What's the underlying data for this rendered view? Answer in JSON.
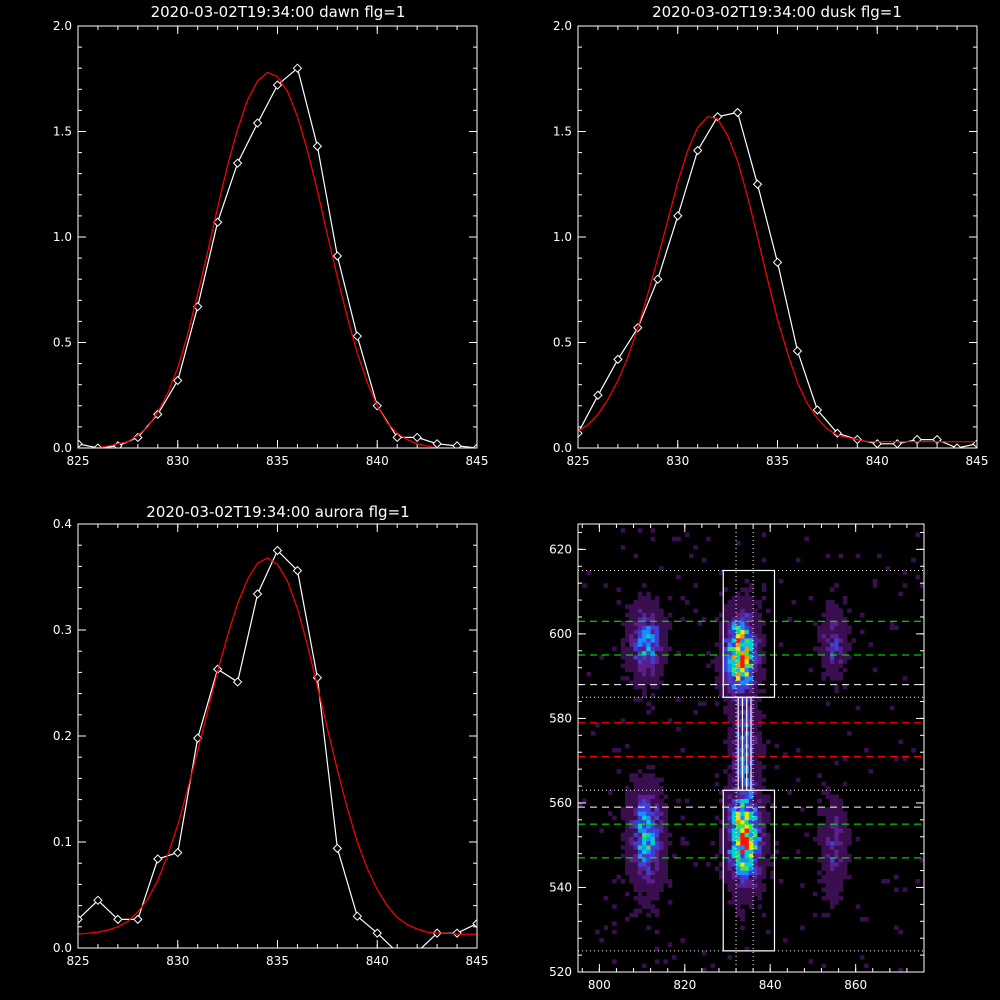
{
  "chart_data": [
    {
      "type": "line",
      "title": "2020-03-02T19:34:00 dawn flg=1",
      "xlim": [
        825,
        845
      ],
      "ylim": [
        0,
        2.0
      ],
      "xticks": [
        "825",
        "830",
        "835",
        "840",
        "845"
      ],
      "yticks": [
        "0.0",
        "0.5",
        "1.0",
        "1.5",
        "2.0"
      ],
      "series": [
        {
          "color": "#ffffff",
          "marker": "diamond",
          "x": [
            825,
            826,
            827,
            828,
            829,
            830,
            831,
            832,
            833,
            834,
            835,
            836,
            837,
            838,
            839,
            840,
            841,
            842,
            843,
            844,
            845
          ],
          "y": [
            0.02,
            0.0,
            0.01,
            0.05,
            0.16,
            0.32,
            0.67,
            1.07,
            1.35,
            1.54,
            1.72,
            1.8,
            1.43,
            0.91,
            0.53,
            0.2,
            0.05,
            0.05,
            0.02,
            0.01,
            0.0
          ]
        },
        {
          "color": "#ff0000",
          "fit": "gaussian",
          "x": [
            825,
            825.5,
            826,
            826.5,
            827,
            827.5,
            828,
            828.5,
            829,
            829.5,
            830,
            830.5,
            831,
            831.5,
            832,
            832.5,
            833,
            833.5,
            834,
            834.5,
            835,
            835.5,
            836,
            836.5,
            837,
            837.5,
            838,
            838.5,
            839,
            839.5,
            840,
            840.5,
            841,
            841.5,
            842,
            842.5,
            843,
            843.5,
            844,
            844.5,
            845
          ],
          "y": [
            0.0,
            0.0,
            0.0,
            0.01,
            0.02,
            0.03,
            0.06,
            0.1,
            0.17,
            0.26,
            0.38,
            0.54,
            0.73,
            0.93,
            1.14,
            1.34,
            1.51,
            1.65,
            1.74,
            1.78,
            1.76,
            1.69,
            1.57,
            1.41,
            1.22,
            1.01,
            0.81,
            0.62,
            0.45,
            0.31,
            0.2,
            0.12,
            0.07,
            0.04,
            0.02,
            0.01,
            0.0,
            0.0,
            0.0,
            0.0,
            0.0
          ]
        }
      ]
    },
    {
      "type": "line",
      "title": "2020-03-02T19:34:00 dusk flg=1",
      "xlim": [
        825,
        845
      ],
      "ylim": [
        0,
        2.0
      ],
      "xticks": [
        "825",
        "830",
        "835",
        "840",
        "845"
      ],
      "yticks": [
        "0.0",
        "0.5",
        "1.0",
        "1.5",
        "2.0"
      ],
      "series": [
        {
          "color": "#ffffff",
          "marker": "diamond",
          "x": [
            825,
            826,
            827,
            828,
            829,
            830,
            831,
            832,
            833,
            834,
            835,
            836,
            837,
            838,
            839,
            840,
            841,
            842,
            843,
            844,
            845
          ],
          "y": [
            0.07,
            0.25,
            0.42,
            0.57,
            0.8,
            1.1,
            1.41,
            1.57,
            1.59,
            1.25,
            0.88,
            0.46,
            0.18,
            0.07,
            0.04,
            0.02,
            0.02,
            0.04,
            0.04,
            0.0,
            0.02
          ]
        },
        {
          "color": "#ff0000",
          "fit": "gaussian",
          "x": [
            825,
            825.5,
            826,
            826.5,
            827,
            827.5,
            828,
            828.5,
            829,
            829.5,
            830,
            830.5,
            831,
            831.5,
            832,
            832.5,
            833,
            833.5,
            834,
            834.5,
            835,
            835.5,
            836,
            836.5,
            837,
            837.5,
            838,
            838.5,
            839,
            839.5,
            840,
            840.5,
            841,
            841.5,
            842,
            842.5,
            843,
            843.5,
            844,
            844.5,
            845
          ],
          "y": [
            0.08,
            0.11,
            0.16,
            0.23,
            0.32,
            0.43,
            0.57,
            0.73,
            0.9,
            1.08,
            1.26,
            1.41,
            1.52,
            1.57,
            1.56,
            1.48,
            1.36,
            1.19,
            1.0,
            0.8,
            0.61,
            0.45,
            0.31,
            0.21,
            0.14,
            0.09,
            0.06,
            0.05,
            0.04,
            0.03,
            0.03,
            0.03,
            0.03,
            0.03,
            0.03,
            0.03,
            0.03,
            0.03,
            0.03,
            0.03,
            0.03
          ]
        }
      ]
    },
    {
      "type": "line",
      "title": "2020-03-02T19:34:00 aurora flg=1",
      "xlim": [
        825,
        845
      ],
      "ylim": [
        0,
        0.4
      ],
      "xticks": [
        "825",
        "830",
        "835",
        "840",
        "845"
      ],
      "yticks": [
        "0.0",
        "0.1",
        "0.2",
        "0.3",
        "0.4"
      ],
      "series": [
        {
          "color": "#ffffff",
          "marker": "diamond",
          "x": [
            825,
            826,
            827,
            828,
            829,
            830,
            831,
            832,
            833,
            834,
            835,
            836,
            837,
            838,
            839,
            840,
            841,
            842,
            843,
            844,
            845
          ],
          "y": [
            0.027,
            0.045,
            0.027,
            0.027,
            0.084,
            0.09,
            0.198,
            0.263,
            0.251,
            0.334,
            0.375,
            0.356,
            0.255,
            0.094,
            0.03,
            0.014,
            -0.004,
            -0.004,
            0.014,
            0.014,
            0.023
          ]
        },
        {
          "color": "#ff0000",
          "fit": "gaussian",
          "x": [
            825,
            825.5,
            826,
            826.5,
            827,
            827.5,
            828,
            828.5,
            829,
            829.5,
            830,
            830.5,
            831,
            831.5,
            832,
            832.5,
            833,
            833.5,
            834,
            834.5,
            835,
            835.5,
            836,
            836.5,
            837,
            837.5,
            838,
            838.5,
            839,
            839.5,
            840,
            840.5,
            841,
            841.5,
            842,
            842.5,
            843,
            843.5,
            844,
            844.5,
            845
          ],
          "y": [
            0.013,
            0.014,
            0.015,
            0.017,
            0.02,
            0.025,
            0.034,
            0.046,
            0.064,
            0.088,
            0.116,
            0.15,
            0.186,
            0.224,
            0.261,
            0.295,
            0.325,
            0.348,
            0.363,
            0.368,
            0.362,
            0.346,
            0.32,
            0.286,
            0.247,
            0.207,
            0.168,
            0.132,
            0.1,
            0.075,
            0.055,
            0.04,
            0.029,
            0.022,
            0.018,
            0.015,
            0.014,
            0.014,
            0.013,
            0.013,
            0.013
          ]
        }
      ]
    },
    {
      "type": "heatmap",
      "xlim": [
        795,
        876
      ],
      "ylim": [
        520,
        626
      ],
      "xticks": [
        "800",
        "820",
        "840",
        "860"
      ],
      "yticks": [
        "520",
        "540",
        "560",
        "580",
        "600",
        "620"
      ],
      "colormap": [
        "#000000",
        "#3a0f4f",
        "#5b1f8c",
        "#3f3fd6",
        "#1a8cff",
        "#00d0d0",
        "#40e060",
        "#e8e800",
        "#ff9000",
        "#ff1010"
      ],
      "emission_regions": [
        {
          "x": 811,
          "y": 598,
          "half_width_x": 4,
          "half_height_y": 9,
          "strength": 0.55
        },
        {
          "x": 811,
          "y": 552,
          "half_width_x": 4,
          "half_height_y": 12,
          "strength": 0.6
        },
        {
          "x": 833,
          "y": 595,
          "half_width_x": 4,
          "half_height_y": 10,
          "strength": 1.0
        },
        {
          "x": 834,
          "y": 552,
          "half_width_x": 4,
          "half_height_y": 12,
          "strength": 1.0
        },
        {
          "x": 834,
          "y": 574,
          "half_width_x": 3,
          "half_height_y": 10,
          "strength": 0.45
        },
        {
          "x": 855,
          "y": 598,
          "half_width_x": 3,
          "half_height_y": 8,
          "strength": 0.35
        },
        {
          "x": 855,
          "y": 550,
          "half_width_x": 3,
          "half_height_y": 12,
          "strength": 0.3
        }
      ],
      "boxes": [
        {
          "x0": 829,
          "x1": 841,
          "y0": 585,
          "y1": 615,
          "color": "#ffffff"
        },
        {
          "x0": 829,
          "x1": 841,
          "y0": 525,
          "y1": 563,
          "color": "#ffffff"
        },
        {
          "x0": 832.5,
          "x1": 833.5,
          "y0": 563,
          "y1": 585,
          "color": "#ffffff"
        },
        {
          "x0": 834.5,
          "x1": 835.5,
          "y0": 563,
          "y1": 585,
          "color": "#ffffff"
        }
      ],
      "hlines": [
        {
          "y": 615,
          "color": "#ffffff",
          "style": "dotted"
        },
        {
          "y": 603,
          "color": "#00ff00",
          "style": "dashed"
        },
        {
          "y": 595,
          "color": "#00ff00",
          "style": "dashed"
        },
        {
          "y": 588,
          "color": "#ffffff",
          "style": "dashed"
        },
        {
          "y": 585,
          "color": "#ffffff",
          "style": "dotted"
        },
        {
          "y": 579,
          "color": "#ff0000",
          "style": "dashed"
        },
        {
          "y": 571,
          "color": "#ff0000",
          "style": "dashed"
        },
        {
          "y": 563,
          "color": "#ffffff",
          "style": "dotted"
        },
        {
          "y": 559,
          "color": "#ffffff",
          "style": "dashed"
        },
        {
          "y": 555,
          "color": "#00ff00",
          "style": "dashed"
        },
        {
          "y": 547,
          "color": "#00ff00",
          "style": "dashed"
        },
        {
          "y": 525,
          "color": "#ffffff",
          "style": "dotted"
        }
      ],
      "vlines": [
        {
          "x": 832,
          "color": "#ffffff",
          "style": "dotted"
        },
        {
          "x": 836,
          "color": "#ffffff",
          "style": "dotted"
        }
      ]
    }
  ]
}
